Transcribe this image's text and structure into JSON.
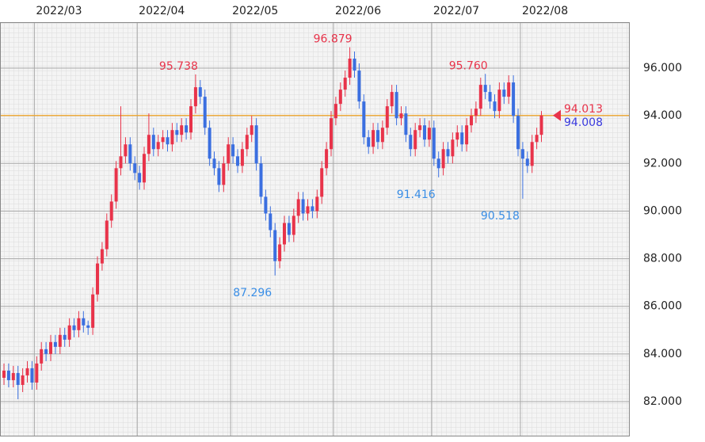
{
  "chart_data": {
    "type": "candlestick",
    "open": [
      83.0,
      83.3,
      82.9,
      83.2,
      82.7,
      83.1,
      83.4,
      82.8,
      83.6,
      84.2,
      84.0,
      84.5,
      84.3,
      84.8,
      84.6,
      85.2,
      85.0,
      85.5,
      85.2,
      85.1,
      86.5,
      87.8,
      88.4,
      89.6,
      90.4,
      91.8,
      92.3,
      92.8,
      92.0,
      91.6,
      91.2,
      92.4,
      93.2,
      92.6,
      92.9,
      93.1,
      92.8,
      93.4,
      93.2,
      93.6,
      93.3,
      94.4,
      95.2,
      94.8,
      93.5,
      92.2,
      91.8,
      91.1,
      92.0,
      92.8,
      92.3,
      91.9,
      92.6,
      93.2,
      93.6,
      92.0,
      90.6,
      89.9,
      89.2,
      87.9,
      88.6,
      89.5,
      89.0,
      89.8,
      90.5,
      89.9,
      90.2,
      90.0,
      90.6,
      91.8,
      92.6,
      93.9,
      94.5,
      95.1,
      95.6,
      96.4,
      95.9,
      94.6,
      93.1,
      92.7,
      93.4,
      92.9,
      93.5,
      94.4,
      95.0,
      93.9,
      94.1,
      93.2,
      92.6,
      93.4,
      93.6,
      93.0,
      93.5,
      92.2,
      91.8,
      92.6,
      92.3,
      93.0,
      93.3,
      92.8,
      93.6,
      94.0,
      94.3,
      95.3,
      95.0,
      94.6,
      94.2,
      95.1,
      94.8,
      95.4,
      94.0,
      92.6,
      92.2,
      91.9,
      92.9,
      93.2
    ],
    "high": [
      83.6,
      83.6,
      83.5,
      83.5,
      83.4,
      83.7,
      83.7,
      83.9,
      84.5,
      84.5,
      84.8,
      84.8,
      85.1,
      85.1,
      85.5,
      85.5,
      85.8,
      85.8,
      85.4,
      86.8,
      88.1,
      88.7,
      89.9,
      90.7,
      92.1,
      94.4,
      93.1,
      93.1,
      92.3,
      91.9,
      92.7,
      94.1,
      93.5,
      93.2,
      93.4,
      93.4,
      93.7,
      93.7,
      93.9,
      93.9,
      94.7,
      95.738,
      95.5,
      95.1,
      93.8,
      92.5,
      92.1,
      92.3,
      93.1,
      93.1,
      92.6,
      92.9,
      93.5,
      94.0,
      93.9,
      92.3,
      90.9,
      90.2,
      89.5,
      88.9,
      89.8,
      89.8,
      90.1,
      90.8,
      90.8,
      90.5,
      90.5,
      90.9,
      92.1,
      92.9,
      94.2,
      94.8,
      95.4,
      95.9,
      96.879,
      96.7,
      96.2,
      94.9,
      93.4,
      93.7,
      93.7,
      93.8,
      94.7,
      95.3,
      95.3,
      94.4,
      94.4,
      93.5,
      93.7,
      93.9,
      93.9,
      93.8,
      93.8,
      92.5,
      92.9,
      92.9,
      93.3,
      93.6,
      93.6,
      93.9,
      94.3,
      94.6,
      95.6,
      95.76,
      95.3,
      94.9,
      95.4,
      95.4,
      95.7,
      95.7,
      94.3,
      92.9,
      92.5,
      93.2,
      93.5,
      94.2
    ],
    "low": [
      82.7,
      82.6,
      82.6,
      82.1,
      82.4,
      82.8,
      82.5,
      82.5,
      83.3,
      83.7,
      83.7,
      84.0,
      84.0,
      84.3,
      84.3,
      84.7,
      84.7,
      84.9,
      84.8,
      84.8,
      86.2,
      87.5,
      88.1,
      89.3,
      90.1,
      91.5,
      92.0,
      91.7,
      91.3,
      90.9,
      90.9,
      92.1,
      92.3,
      92.3,
      92.6,
      92.5,
      92.5,
      92.9,
      92.9,
      93.0,
      93.0,
      94.1,
      94.5,
      93.2,
      91.9,
      91.5,
      90.8,
      90.8,
      91.7,
      92.0,
      91.6,
      91.6,
      92.3,
      92.9,
      91.7,
      90.3,
      89.6,
      88.9,
      87.296,
      87.6,
      88.3,
      88.7,
      88.7,
      89.5,
      89.6,
      89.6,
      89.7,
      89.7,
      90.3,
      91.5,
      92.3,
      93.6,
      94.2,
      94.8,
      95.3,
      95.6,
      94.3,
      92.8,
      92.4,
      92.4,
      92.6,
      92.6,
      93.2,
      94.1,
      93.6,
      93.6,
      92.9,
      92.3,
      92.3,
      93.1,
      92.7,
      92.7,
      91.9,
      91.416,
      91.5,
      92.0,
      92.0,
      92.7,
      92.5,
      92.5,
      93.3,
      93.7,
      94.0,
      94.7,
      94.3,
      93.9,
      93.9,
      94.5,
      94.5,
      93.7,
      92.3,
      90.518,
      91.6,
      91.6,
      92.6,
      92.9
    ],
    "close": [
      83.3,
      82.9,
      83.2,
      82.7,
      83.1,
      83.4,
      82.8,
      83.6,
      84.2,
      84.0,
      84.5,
      84.3,
      84.8,
      84.6,
      85.2,
      85.0,
      85.5,
      85.2,
      85.1,
      86.5,
      87.8,
      88.4,
      89.6,
      90.4,
      91.8,
      92.3,
      92.8,
      92.0,
      91.6,
      91.2,
      92.4,
      93.2,
      92.6,
      92.9,
      93.1,
      92.8,
      93.4,
      93.2,
      93.6,
      93.3,
      94.4,
      95.2,
      94.8,
      93.5,
      92.2,
      91.8,
      91.1,
      92.0,
      92.8,
      92.3,
      91.9,
      92.6,
      93.2,
      93.6,
      92.0,
      90.6,
      89.9,
      89.2,
      87.9,
      88.6,
      89.5,
      89.0,
      89.8,
      90.5,
      89.9,
      90.2,
      90.0,
      90.6,
      91.8,
      92.6,
      93.9,
      94.5,
      95.1,
      95.6,
      96.4,
      95.9,
      94.6,
      93.1,
      92.7,
      93.4,
      92.9,
      93.5,
      94.4,
      95.0,
      93.9,
      94.1,
      93.2,
      92.6,
      93.4,
      93.6,
      93.0,
      93.5,
      92.2,
      91.8,
      92.6,
      92.3,
      93.0,
      93.3,
      92.8,
      93.6,
      94.0,
      94.3,
      95.3,
      95.0,
      94.6,
      94.2,
      95.1,
      94.8,
      95.4,
      94.0,
      92.6,
      92.2,
      91.9,
      92.9,
      93.2,
      94.013
    ],
    "up_color": "#e8334a",
    "down_color": "#3b6fe0",
    "xlim": [
      -0.85,
      133.9
    ],
    "xticks": [
      {
        "value": 6.5,
        "label": "2022/03"
      },
      {
        "value": 28.5,
        "label": "2022/04"
      },
      {
        "value": 48.5,
        "label": "2022/05"
      },
      {
        "value": 70.5,
        "label": "2022/06"
      },
      {
        "value": 91.5,
        "label": "2022/07"
      },
      {
        "value": 110.5,
        "label": "2022/08"
      }
    ],
    "ylim": [
      80.57,
      97.93
    ],
    "yticks": [
      {
        "value": 82,
        "label": "82.000"
      },
      {
        "value": 84,
        "label": "84.000"
      },
      {
        "value": 86,
        "label": "86.000"
      },
      {
        "value": 88,
        "label": "88.000"
      },
      {
        "value": 90,
        "label": "90.000"
      },
      {
        "value": 92,
        "label": "92.000"
      },
      {
        "value": 94,
        "label": "94.000"
      },
      {
        "value": 96,
        "label": "96.000"
      }
    ],
    "grid": true,
    "highs": {
      "values": [
        95.738,
        96.879,
        95.76
      ],
      "value_labels": [
        "95.738",
        "96.879",
        "95.760"
      ],
      "color": "#e8334a"
    },
    "lows": {
      "values": [
        87.296,
        91.416,
        90.518
      ],
      "value_labels": [
        "87.296",
        "91.416",
        "90.518"
      ],
      "color": "#3a8ee6"
    },
    "price_labels": {
      "values": [
        94.013,
        94.008
      ],
      "value_labels": [
        "94.013",
        "94.008"
      ],
      "colors": [
        "#e8334a",
        "#3a3adf"
      ]
    },
    "price_line_color": "#f5a623"
  }
}
